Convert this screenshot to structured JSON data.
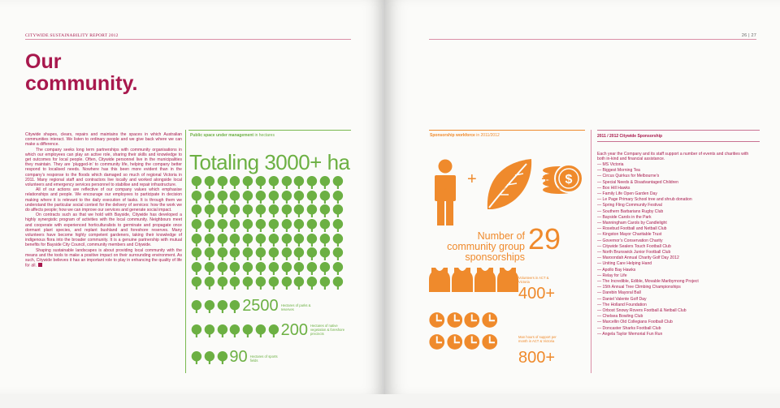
{
  "header": {
    "report_title": "CITYWIDE SUSTAINABILITY REPORT 2012",
    "page_numbers": "26 | 27"
  },
  "title": {
    "line1": "Our",
    "line2": "community."
  },
  "body": {
    "p1": "Citywide shapes, clears, repairs and maintains the spaces in which Australian communities interact. We listen to ordinary people and we give back where we can make a difference.",
    "p2": "The company seeks long term partnerships with community organisations in which our employees can play an active role, sharing their skills and knowledge to get outcomes for local people. Often, Citywide personnel live in the municipalities they maintain. They are ‘plugged-in’ to community life, helping the company better respond to localised needs. Nowhere has this been more evident than in the company’s response to the floods which damaged so much of regional Victoria in 2011. Many regional staff and contractors live locally and worked alongside local volunteers and emergency services personnel to stabilise and repair infrastructure.",
    "p3": "All of our actions are reflective of our company values which emphasise relationships and people. We encourage our employees to participate in decision making where it is relevant to the daily execution of tasks. It is through them we understand the particular social context for the delivery of services: how the work we do affects people; how we can improve our services and generate social impact.",
    "p4": "On contracts such as that we hold with Bayside, Citywide has developed a highly synergistic program of activities with the local community. Neighbours meet and cooperate with experienced horticulturalists to germinate and propagate once dormant plant species, and replant bushland and foreshore reserves. Many volunteers have become highly competent gardeners, taking their knowledge of indigenous flora into the broader community. It is a genuine partnership with mutual benefits for Bayside City Council, community members and Citywide.",
    "p5": "Shaping sustainable landscapes is about providing local community with the means and the tools to make a positive impact on their surrounding environment. As such, Citywide believes it has an important role to play in enhancing the quality of life for all."
  },
  "public_space": {
    "heading": "Public space under management",
    "heading_unit": "in hectares",
    "total": "Totaling 3000+ ha",
    "stats": [
      {
        "value": "2500",
        "label": "Hectares of parks & reserves"
      },
      {
        "value": "200",
        "label": "Hectares of native vegetation & foreshore precincts"
      },
      {
        "value": "90",
        "label": "Hectares of sports fields"
      }
    ]
  },
  "sponsorship_workforce": {
    "heading": "Sponsorship workforce",
    "heading_unit": "in 2011/2012",
    "icons": [
      {
        "label": "In-kind",
        "icon": "person-icon"
      },
      {
        "label": "Expertise",
        "icon": "leaf-icon"
      },
      {
        "label": "Finance",
        "icon": "coins-icon"
      }
    ],
    "community_groups_label": "Number of community group sponsorships",
    "community_groups_value": "29",
    "volunteers_label": "Volunteers in ACT & Victoria",
    "volunteers_value": "400+",
    "man_hours_label": "Man hours of support per month in ACT & Victoria",
    "man_hours_value": "800+"
  },
  "sponsorship_list": {
    "title": "2011 / 2012 Citywide Sponsorship",
    "intro": "Each year the Company and its staff support a number of events and charities with both in-kind and financial assistance.",
    "items": [
      "MS Victoria",
      "Biggest Morning Tea",
      "Circus Quirkus for Melbourne’s",
      "Special Needs & Disadvantaged Children",
      "Box Hill Hawks",
      "Family Life Open Garden Day",
      "Le Page Primary School tree and shrub donation",
      "Spring Fling Community Festival",
      "Southern Barbarians Rugby Club",
      "Bayside Carols in the Park",
      "Manningham Carols by Candlelight",
      "Rosebud Football and Netball Club",
      "Kingston Mayor Charitable Trust",
      "Governor’s Conservation Charity",
      "Citywide Sealers Touch Football Club",
      "North Brunswick Junior Football Club",
      "Maroondah Annual Charity Golf Day 2012",
      "Uniting Care Helping Hand",
      "Apollo Bay Hawks",
      "Relay for Life",
      "The Incredible, Edible, Movable Maribyrnong Project",
      "15th Annual Tree Climbing Championships",
      "Darebin Mayoral Ball",
      "Daniel Valente Golf Day",
      "The Holland Foundation",
      "Orbost Snowy Rovers Football & Netball Club",
      "Chelsea Bowling Club",
      "Marcellin Old Collegians Football Club",
      "Doncaster Sharks Football Club",
      "Angela Taylor Memorial Fun Run"
    ]
  },
  "colors": {
    "crimson": "#a8184d",
    "green": "#6cb043",
    "orange": "#ef8a2c"
  }
}
